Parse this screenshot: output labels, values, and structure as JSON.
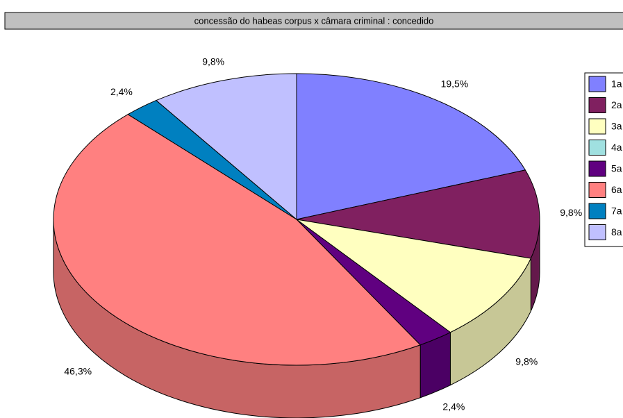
{
  "chart_data": {
    "type": "pie",
    "title": "concessão do habeas corpus x câmara criminal : concedido",
    "categories": [
      "1a",
      "2a",
      "3a",
      "4a",
      "5a",
      "6a",
      "7a",
      "8a"
    ],
    "values": [
      19.5,
      9.8,
      9.8,
      0,
      2.4,
      46.3,
      2.4,
      9.8
    ],
    "value_labels": [
      "19,5%",
      "9,8%",
      "9,8%",
      null,
      "2,4%",
      "46,3%",
      "2,4%",
      "9,8%"
    ],
    "colors": [
      "#8080ff",
      "#802060",
      "#ffffc0",
      "#a0e0e0",
      "#600080",
      "#ff8080",
      "#0080c0",
      "#c0c0ff"
    ],
    "legend": "right"
  }
}
